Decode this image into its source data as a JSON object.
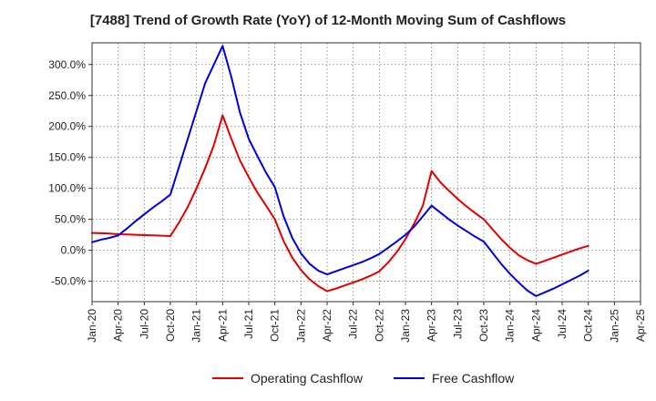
{
  "chart_data": {
    "type": "line",
    "title": "[7488]  Trend of Growth Rate (YoY) of 12-Month Moving Sum of Cashflows",
    "xlabel": "",
    "ylabel": "",
    "x_ticks": [
      "Jan-20",
      "Apr-20",
      "Jul-20",
      "Oct-20",
      "Jan-21",
      "Apr-21",
      "Jul-21",
      "Oct-21",
      "Jan-22",
      "Apr-22",
      "Jul-22",
      "Oct-22",
      "Jan-23",
      "Apr-23",
      "Jul-23",
      "Oct-23",
      "Jan-24",
      "Apr-24",
      "Jul-24",
      "Oct-24",
      "Jan-25",
      "Apr-25"
    ],
    "y_ticks": [
      "-50.0%",
      "0.0%",
      "50.0%",
      "100.0%",
      "150.0%",
      "200.0%",
      "250.0%",
      "300.0%"
    ],
    "y_tick_values": [
      -50,
      0,
      50,
      100,
      150,
      200,
      250,
      300
    ],
    "ylim": [
      -83,
      335
    ],
    "grid": true,
    "legend_position": "bottom",
    "series": [
      {
        "name": "Operating Cashflow",
        "color": "#e00000",
        "x": [
          "Jan-20",
          "Feb-20",
          "Mar-20",
          "Apr-20",
          "May-20",
          "Jun-20",
          "Jul-20",
          "Aug-20",
          "Sep-20",
          "Oct-20",
          "Nov-20",
          "Dec-20",
          "Jan-21",
          "Feb-21",
          "Mar-21",
          "Apr-21",
          "May-21",
          "Jun-21",
          "Jul-21",
          "Aug-21",
          "Sep-21",
          "Oct-21",
          "Nov-21",
          "Dec-21",
          "Jan-22",
          "Feb-22",
          "Mar-22",
          "Apr-22",
          "May-22",
          "Jun-22",
          "Jul-22",
          "Aug-22",
          "Sep-22",
          "Oct-22",
          "Nov-22",
          "Dec-22",
          "Jan-23",
          "Feb-23",
          "Mar-23",
          "Apr-23",
          "May-23",
          "Jun-23",
          "Jul-23",
          "Aug-23",
          "Sep-23",
          "Oct-23",
          "Nov-23",
          "Dec-23",
          "Jan-24",
          "Feb-24",
          "Mar-24",
          "Apr-24",
          "May-24",
          "Jun-24",
          "Jul-24",
          "Aug-24",
          "Sep-24",
          "Oct-24"
        ],
        "values": [
          28,
          27.5,
          27,
          26,
          25.5,
          25,
          24.5,
          24,
          23.5,
          23,
          45,
          70,
          100,
          133,
          170,
          218,
          180,
          145,
          118,
          93,
          72,
          50,
          15,
          -12,
          -32,
          -47,
          -58,
          -66,
          -62,
          -57,
          -52,
          -47,
          -41,
          -34,
          -20,
          -3,
          18,
          43,
          72,
          128,
          110,
          96,
          83,
          71,
          60,
          50,
          34,
          18,
          4,
          -8,
          -16,
          -22,
          -17,
          -12,
          -7,
          -2,
          3,
          7
        ]
      },
      {
        "name": "Free Cashflow",
        "color": "#0000dd",
        "x": [
          "Jan-20",
          "Feb-20",
          "Mar-20",
          "Apr-20",
          "May-20",
          "Jun-20",
          "Jul-20",
          "Aug-20",
          "Sep-20",
          "Oct-20",
          "Nov-20",
          "Dec-20",
          "Jan-21",
          "Feb-21",
          "Mar-21",
          "Apr-21",
          "May-21",
          "Jun-21",
          "Jul-21",
          "Aug-21",
          "Sep-21",
          "Oct-21",
          "Nov-21",
          "Dec-21",
          "Jan-22",
          "Feb-22",
          "Mar-22",
          "Apr-22",
          "May-22",
          "Jun-22",
          "Jul-22",
          "Aug-22",
          "Sep-22",
          "Oct-22",
          "Nov-22",
          "Dec-22",
          "Jan-23",
          "Feb-23",
          "Mar-23",
          "Apr-23",
          "May-23",
          "Jun-23",
          "Jul-23",
          "Aug-23",
          "Sep-23",
          "Oct-23",
          "Nov-23",
          "Dec-23",
          "Jan-24",
          "Feb-24",
          "Mar-24",
          "Apr-24",
          "May-24",
          "Jun-24",
          "Jul-24",
          "Aug-24",
          "Sep-24",
          "Oct-24"
        ],
        "values": [
          13,
          17,
          20,
          24,
          35,
          47,
          58,
          69,
          79,
          90,
          135,
          180,
          225,
          270,
          300,
          330,
          280,
          222,
          180,
          152,
          125,
          102,
          55,
          20,
          -5,
          -22,
          -33,
          -39,
          -34,
          -29,
          -24,
          -19,
          -13,
          -6,
          4,
          14,
          25,
          38,
          55,
          72,
          61,
          50,
          40,
          31,
          22,
          14,
          -4,
          -22,
          -38,
          -52,
          -65,
          -74,
          -68,
          -62,
          -55,
          -48,
          -41,
          -33
        ]
      }
    ]
  }
}
